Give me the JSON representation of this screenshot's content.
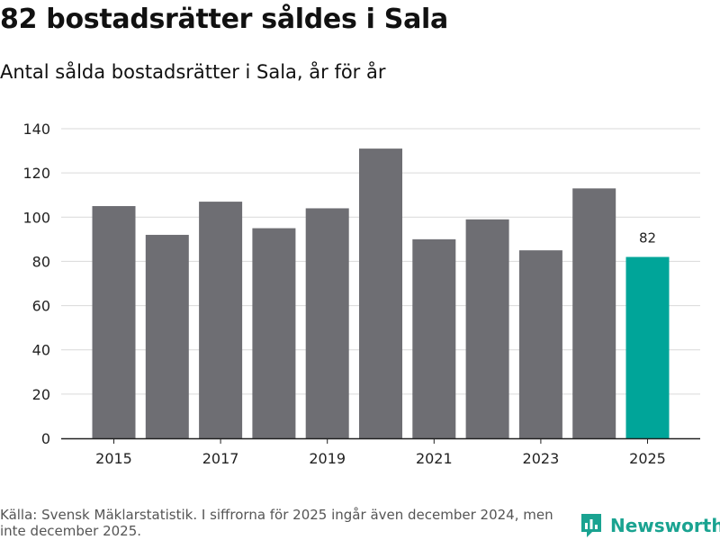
{
  "header": {
    "title": "82 bostadsrätter såldes i Sala",
    "subtitle": "Antal sålda bostadsrätter i Sala, år för år"
  },
  "footer": {
    "source": "Källa: Svensk Mäklarstatistik. I siffrorna för 2025 ingår även december 2024, men inte december 2025.",
    "brand": "Newsworthy"
  },
  "colors": {
    "bar": "#6e6e73",
    "highlight": "#00a599",
    "grid": "#d9d9d9",
    "brand": "#1aa391"
  },
  "chart_data": {
    "type": "bar",
    "title": "Antal sålda bostadsrätter i Sala, år för år",
    "xlabel": "",
    "ylabel": "",
    "categories": [
      "2015",
      "2016",
      "2017",
      "2018",
      "2019",
      "2020",
      "2021",
      "2022",
      "2023",
      "2024",
      "2025"
    ],
    "values": [
      105,
      92,
      107,
      95,
      104,
      131,
      90,
      99,
      85,
      113,
      82
    ],
    "x_tick_labels": [
      "2015",
      "2017",
      "2019",
      "2021",
      "2023",
      "2025"
    ],
    "y_ticks": [
      0,
      20,
      40,
      60,
      80,
      100,
      120,
      140
    ],
    "ylim": [
      0,
      140
    ],
    "highlight_category": "2025",
    "data_labels": [
      {
        "category": "2025",
        "text": "82"
      }
    ],
    "grid": true
  }
}
